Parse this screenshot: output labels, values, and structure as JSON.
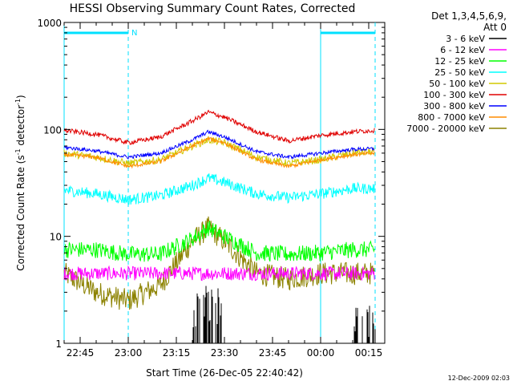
{
  "chart_data": {
    "type": "line",
    "title": "HESSI Observing Summary Count Rates, Corrected",
    "xlabel": "Start Time (26-Dec-05 22:40:42)",
    "ylabel_main": "Corrected Count Rate (s",
    "ylabel_sup1": "-1",
    "ylabel_mid": " detector",
    "ylabel_sup2": "-1",
    "ylabel_end": ")",
    "yscale": "log",
    "ylim": [
      1,
      1000
    ],
    "xlim": [
      "22:40",
      "00:20"
    ],
    "x_ticks": [
      "22:45",
      "23:00",
      "23:15",
      "23:30",
      "23:45",
      "00:00",
      "00:15"
    ],
    "y_ticks": [
      "1",
      "10",
      "100",
      "1000"
    ],
    "grid": false,
    "legend_position": "right",
    "legend_title_line1": "Det 1,3,4,5,6,9,",
    "legend_title_line2": "Att 0",
    "markers": [
      {
        "label": "N",
        "time": "23:00",
        "color": "#00e0ff"
      }
    ],
    "night_intervals": [
      {
        "start": "22:40",
        "end": "23:00"
      },
      {
        "start": "00:00",
        "end": "00:17"
      }
    ],
    "vertical_lines": [
      "22:40",
      "23:00",
      "00:00",
      "00:17"
    ],
    "series": [
      {
        "name": "3 - 6 keV",
        "color": "#000000"
      },
      {
        "name": "6 - 12 keV",
        "color": "#ff00ff"
      },
      {
        "name": "12 - 25 keV",
        "color": "#00ff00"
      },
      {
        "name": "25 - 50 keV",
        "color": "#00ffff"
      },
      {
        "name": "50 - 100 keV",
        "color": "#d2c800"
      },
      {
        "name": "100 - 300 keV",
        "color": "#e00000"
      },
      {
        "name": "300 - 800 keV",
        "color": "#0000ff"
      },
      {
        "name": "800 - 7000 keV",
        "color": "#ff8c00"
      },
      {
        "name": "7000 - 20000 keV",
        "color": "#8c8200"
      }
    ],
    "series_values": {
      "time": [
        "22:40",
        "22:50",
        "23:00",
        "23:10",
        "23:20",
        "23:25",
        "23:30",
        "23:40",
        "23:50",
        "00:00",
        "00:10",
        "00:17"
      ],
      "3 - 6 keV": [
        null,
        null,
        null,
        null,
        2.0,
        2.2,
        2.0,
        null,
        null,
        null,
        1.8,
        1.5
      ],
      "6 - 12 keV": [
        4.5,
        4.5,
        4.5,
        4.5,
        4.5,
        4.5,
        4.5,
        4.5,
        4.5,
        4.5,
        4.5,
        4.5
      ],
      "12 - 25 keV": [
        7.5,
        7.5,
        6.8,
        6.8,
        9.5,
        12,
        10,
        7,
        6.8,
        7,
        7.5,
        7.5
      ],
      "25 - 50 keV": [
        27,
        25,
        22,
        24,
        30,
        35,
        32,
        25,
        23,
        25,
        28,
        28
      ],
      "50 - 100 keV": [
        60,
        55,
        48,
        52,
        70,
        80,
        75,
        55,
        48,
        52,
        60,
        62
      ],
      "100 - 300 keV": [
        98,
        90,
        75,
        85,
        120,
        145,
        130,
        95,
        78,
        88,
        95,
        98
      ],
      "300 - 800 keV": [
        68,
        63,
        55,
        60,
        80,
        95,
        85,
        62,
        55,
        60,
        65,
        66
      ],
      "800 - 7000 keV": [
        58,
        55,
        45,
        50,
        70,
        82,
        75,
        52,
        45,
        52,
        58,
        60
      ],
      "7000 - 20000 keV": [
        4.5,
        3.0,
        2.5,
        3.5,
        9,
        12,
        9,
        4.5,
        4.0,
        4.5,
        4.5,
        4.5
      ]
    },
    "footer": "12-Dec-2009 02:03"
  }
}
